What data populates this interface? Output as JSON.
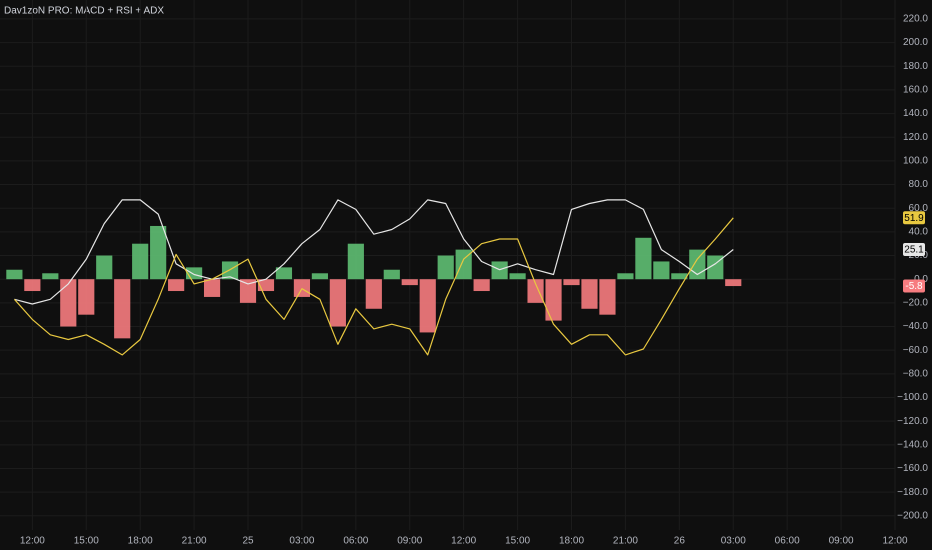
{
  "chart_data": {
    "type": "combo",
    "title": "Dav1zoN PRO: MACD + RSI + ADX",
    "x": [
      -1,
      0,
      1,
      2,
      3,
      4,
      5,
      6,
      7,
      8,
      9,
      10,
      11,
      12,
      13,
      14,
      15,
      16,
      17,
      18,
      19,
      20,
      21,
      22,
      23,
      24,
      25,
      26,
      27,
      28,
      29,
      30,
      31,
      32,
      33,
      34,
      35,
      36,
      37,
      38,
      39
    ],
    "xlim": [
      -1.8,
      48
    ],
    "xticks": [
      {
        "value": 0,
        "label": "12:00"
      },
      {
        "value": 3,
        "label": "15:00"
      },
      {
        "value": 6,
        "label": "18:00"
      },
      {
        "value": 9,
        "label": "21:00"
      },
      {
        "value": 12,
        "label": "25"
      },
      {
        "value": 15,
        "label": "03:00"
      },
      {
        "value": 18,
        "label": "06:00"
      },
      {
        "value": 21,
        "label": "09:00"
      },
      {
        "value": 24,
        "label": "12:00"
      },
      {
        "value": 27,
        "label": "15:00"
      },
      {
        "value": 30,
        "label": "18:00"
      },
      {
        "value": 33,
        "label": "21:00"
      },
      {
        "value": 36,
        "label": "26"
      },
      {
        "value": 39,
        "label": "03:00"
      },
      {
        "value": 42,
        "label": "06:00"
      },
      {
        "value": 45,
        "label": "09:00"
      },
      {
        "value": 48,
        "label": "12:00"
      }
    ],
    "ylim": [
      -212,
      236
    ],
    "yticks": [
      {
        "value": 220,
        "label": "220.0"
      },
      {
        "value": 200,
        "label": "200.0"
      },
      {
        "value": 180,
        "label": "180.0"
      },
      {
        "value": 160,
        "label": "160.0"
      },
      {
        "value": 140,
        "label": "140.0"
      },
      {
        "value": 120,
        "label": "120.0"
      },
      {
        "value": 100,
        "label": "100.0"
      },
      {
        "value": 80,
        "label": "80.0"
      },
      {
        "value": 60,
        "label": "60.0"
      },
      {
        "value": 40,
        "label": "40.0"
      },
      {
        "value": 20,
        "label": "20.0"
      },
      {
        "value": 0,
        "label": "0.0"
      },
      {
        "value": -20,
        "label": "−20.0"
      },
      {
        "value": -40,
        "label": "−40.0"
      },
      {
        "value": -60,
        "label": "−60.0"
      },
      {
        "value": -80,
        "label": "−80.0"
      },
      {
        "value": -100,
        "label": "−100.0"
      },
      {
        "value": -120,
        "label": "−120.0"
      },
      {
        "value": -140,
        "label": "−140.0"
      },
      {
        "value": -160,
        "label": "−160.0"
      },
      {
        "value": -180,
        "label": "−180.0"
      },
      {
        "value": -200,
        "label": "−200.0"
      }
    ],
    "grid": true,
    "series": [
      {
        "type": "histogram",
        "pos_color": "#5fbf73",
        "neg_color": "#f77c80",
        "values": [
          8,
          -10,
          5,
          -40,
          -30,
          20,
          -50,
          30,
          45,
          -10,
          10,
          -15,
          15,
          -20,
          -10,
          10,
          -15,
          5,
          -40,
          30,
          -25,
          8,
          -5,
          -45,
          20,
          25,
          -10,
          15,
          5,
          -20,
          -35,
          -5,
          -25,
          -30,
          5,
          35,
          15,
          5,
          25,
          20,
          -5.8
        ]
      },
      {
        "type": "line",
        "color": "#e6e6e6",
        "values": [
          -17,
          -21,
          -17,
          -4,
          17,
          47,
          67,
          67,
          55,
          13,
          4,
          0,
          2,
          -4,
          0,
          13,
          30,
          42,
          67,
          59,
          38,
          42,
          51,
          67,
          64,
          34,
          15,
          8,
          13,
          8,
          4,
          59,
          64,
          67,
          67,
          59,
          25,
          15,
          4,
          13,
          25.1
        ]
      },
      {
        "type": "line",
        "color": "#e8c840",
        "values": [
          -17,
          -34,
          -47,
          -51,
          -47,
          -55,
          -64,
          -51,
          -17,
          21,
          -4,
          0,
          8,
          17,
          -17,
          -34,
          -8,
          -17,
          -55,
          -25,
          -42,
          -38,
          -42,
          -64,
          -17,
          17,
          30,
          34,
          34,
          -4,
          -38,
          -55,
          -47,
          -47,
          -64,
          -59,
          -34,
          -8,
          17,
          34,
          51.9
        ]
      }
    ]
  }
}
